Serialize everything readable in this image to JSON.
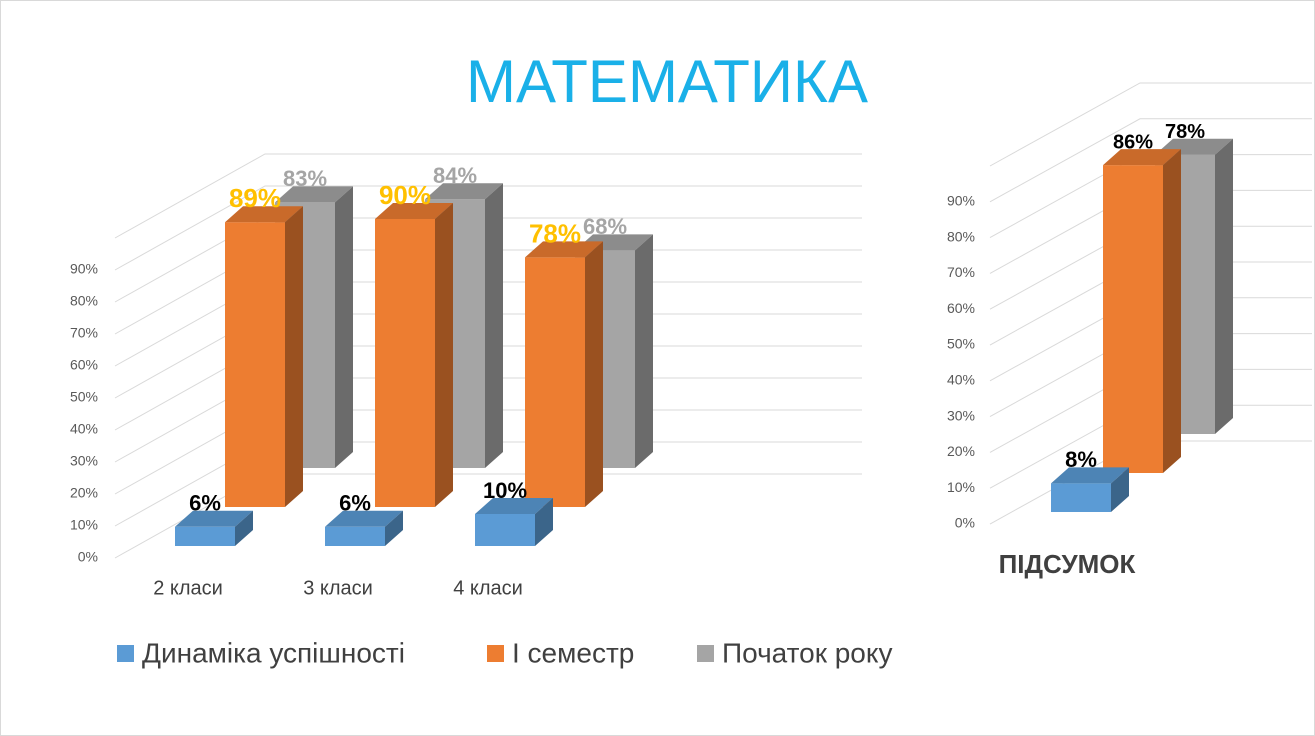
{
  "chart_data": [
    {
      "type": "bar3d",
      "title": "МАТЕМАТИКА",
      "categories": [
        "2 класи",
        "3 класи",
        "4 класи"
      ],
      "series": [
        {
          "name": "Динаміка успішності",
          "color": "#5b9bd5",
          "label_color": "#000000",
          "values": [
            6,
            6,
            10
          ],
          "value_labels": [
            "6%",
            "6%",
            "10%"
          ]
        },
        {
          "name": "І семестр",
          "color": "#ed7d31",
          "label_color": "#ffc000",
          "values": [
            89,
            90,
            78
          ],
          "value_labels": [
            "89%",
            "90%",
            "78%"
          ]
        },
        {
          "name": "Початок року",
          "color": "#a5a5a5",
          "label_color": "#a5a5a5",
          "values": [
            83,
            84,
            68
          ],
          "value_labels": [
            "83%",
            "84%",
            "68%"
          ]
        }
      ],
      "ylim": [
        0,
        100
      ],
      "yticks": [
        {
          "value": 0,
          "label": "0%"
        },
        {
          "value": 10,
          "label": "10%"
        },
        {
          "value": 20,
          "label": "20%"
        },
        {
          "value": 30,
          "label": "30%"
        },
        {
          "value": 40,
          "label": "40%"
        },
        {
          "value": 50,
          "label": "50%"
        },
        {
          "value": 60,
          "label": "60%"
        },
        {
          "value": 70,
          "label": "70%"
        },
        {
          "value": 80,
          "label": "80%"
        },
        {
          "value": 90,
          "label": "90%"
        }
      ],
      "grid": true,
      "legend": "bottom"
    },
    {
      "type": "bar3d",
      "categories": [
        "ПІДСУМОК"
      ],
      "series": [
        {
          "color": "#5b9bd5",
          "label_color": "#000000",
          "values": [
            8
          ],
          "value_labels": [
            "8%"
          ]
        },
        {
          "color": "#ed7d31",
          "label_color": "#000000",
          "values": [
            86
          ],
          "value_labels": [
            "86%"
          ]
        },
        {
          "color": "#a5a5a5",
          "label_color": "#000000",
          "values": [
            78
          ],
          "value_labels": [
            "78%"
          ]
        }
      ],
      "ylim": [
        0,
        100
      ],
      "yticks": [
        {
          "value": 0,
          "label": "0%"
        },
        {
          "value": 10,
          "label": "10%"
        },
        {
          "value": 20,
          "label": "20%"
        },
        {
          "value": 30,
          "label": "30%"
        },
        {
          "value": 40,
          "label": "40%"
        },
        {
          "value": 50,
          "label": "50%"
        },
        {
          "value": 60,
          "label": "60%"
        },
        {
          "value": 70,
          "label": "70%"
        },
        {
          "value": 80,
          "label": "80%"
        },
        {
          "value": 90,
          "label": "90%"
        }
      ],
      "grid": true
    }
  ]
}
